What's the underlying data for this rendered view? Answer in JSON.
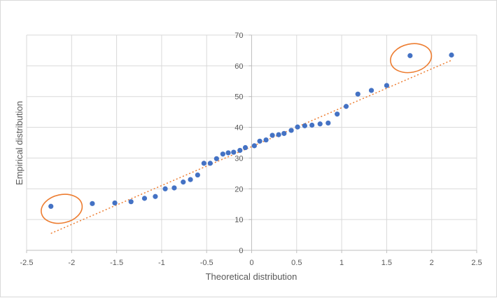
{
  "chart_data": {
    "type": "scatter",
    "title": "",
    "xlabel": "Theoretical distribution",
    "ylabel": "Empirical distribution",
    "xlim": [
      -2.5,
      2.5
    ],
    "ylim": [
      0,
      70
    ],
    "x_ticks": [
      -2.5,
      -2,
      -1.5,
      -1,
      -0.5,
      0,
      0.5,
      1,
      1.5,
      2,
      2.5
    ],
    "x_tick_labels": [
      "-2.5",
      "-2",
      "-1.5",
      "-1",
      "-0.5",
      "0",
      "0.5",
      "1",
      "1.5",
      "2",
      "2.5"
    ],
    "y_ticks": [
      0,
      10,
      20,
      30,
      40,
      50,
      60,
      70
    ],
    "y_tick_labels": [
      "0",
      "10",
      "20",
      "30",
      "40",
      "50",
      "60",
      "70"
    ],
    "grid": true,
    "legend": false,
    "colors": {
      "points": "#4472c4",
      "trendline": "#ed7d31",
      "highlight": "#ed7d31",
      "grid": "#d9d9d9",
      "text": "#595959"
    },
    "series": [
      {
        "x": [
          -2.23,
          -1.77,
          -1.52,
          -1.34,
          -1.19,
          -1.07,
          -0.96,
          -0.86,
          -0.76,
          -0.68,
          -0.6,
          -0.53,
          -0.46,
          -0.39,
          -0.32,
          -0.26,
          -0.2,
          -0.13,
          -0.07,
          0.03,
          0.09,
          0.16,
          0.23,
          0.3,
          0.36,
          0.44,
          0.51,
          0.59,
          0.67,
          0.76,
          0.85,
          0.95,
          1.05,
          1.18,
          1.33,
          1.5,
          1.76,
          2.22
        ],
        "y": [
          14.3,
          15.2,
          15.4,
          15.8,
          16.9,
          17.5,
          20.0,
          20.3,
          22.2,
          23.0,
          24.5,
          28.3,
          28.3,
          29.8,
          31.3,
          31.7,
          31.9,
          32.5,
          33.4,
          34.0,
          35.5,
          35.9,
          37.4,
          37.6,
          38.0,
          39.0,
          40.1,
          40.5,
          40.7,
          41.1,
          41.4,
          44.3,
          46.8,
          50.8,
          52.0,
          53.6,
          63.3,
          63.5
        ]
      }
    ],
    "trendline": {
      "style": "dotted",
      "x": [
        -2.23,
        2.22
      ],
      "y": [
        5.5,
        61.8
      ]
    },
    "annotations": [
      {
        "type": "ellipse",
        "cx": -2.11,
        "cy": 13.5,
        "rx": 0.23,
        "ry": 4.6
      },
      {
        "type": "ellipse",
        "cx": 1.77,
        "cy": 62.5,
        "rx": 0.23,
        "ry": 4.6
      }
    ]
  }
}
